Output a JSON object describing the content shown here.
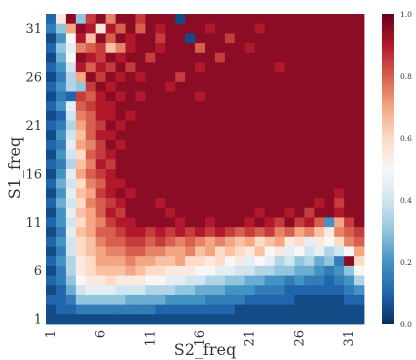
{
  "chart_data": {
    "type": "heatmap",
    "title": "",
    "xlabel": "S2_freq",
    "ylabel": "S1_freq",
    "x_range": [
      1,
      32
    ],
    "y_range": [
      1,
      32
    ],
    "x_ticks": [
      "1",
      "6",
      "11",
      "16",
      "21",
      "26",
      "31"
    ],
    "y_ticks": [
      "1",
      "6",
      "11",
      "16",
      "21",
      "26",
      "31"
    ],
    "value_range": [
      0.0,
      1.0
    ],
    "colormap": "RdBu_r",
    "colorbar_ticks": [
      "0.0",
      "0.2",
      "0.4",
      "0.6",
      "0.8",
      "1.0"
    ],
    "grid": false,
    "description_rows": "rows ordered from S1_freq=32 (top) to S1_freq=1 (bottom); columns ordered S2_freq=1..32",
    "values": [
      [
        0.1,
        0.55,
        0.95,
        0.3,
        0.85,
        0.95,
        0.75,
        0.95,
        0.95,
        0.85,
        0.95,
        0.95,
        0.95,
        0.05,
        0.95,
        0.95,
        0.95,
        0.95,
        0.95,
        0.95,
        0.95,
        0.95,
        0.95,
        0.95,
        0.95,
        0.95,
        0.95,
        0.95,
        0.95,
        0.95,
        0.95,
        0.95
      ],
      [
        0.15,
        0.3,
        0.7,
        0.95,
        0.9,
        0.55,
        0.9,
        0.8,
        0.95,
        0.8,
        0.95,
        0.9,
        0.95,
        0.95,
        0.95,
        0.95,
        0.9,
        0.95,
        0.95,
        0.95,
        0.95,
        0.9,
        0.95,
        0.95,
        0.95,
        0.95,
        0.95,
        0.95,
        0.95,
        0.95,
        0.95,
        0.95
      ],
      [
        0.05,
        0.2,
        0.5,
        0.9,
        0.65,
        0.95,
        0.8,
        0.95,
        0.9,
        0.95,
        0.95,
        0.85,
        0.95,
        0.95,
        0.05,
        0.95,
        0.95,
        0.95,
        0.85,
        0.95,
        0.95,
        0.95,
        0.95,
        0.95,
        0.95,
        0.95,
        0.95,
        0.95,
        0.95,
        0.95,
        0.95,
        0.95
      ],
      [
        0.1,
        0.3,
        0.45,
        0.75,
        0.8,
        0.85,
        0.65,
        0.75,
        0.9,
        0.95,
        0.95,
        0.9,
        0.95,
        0.95,
        0.95,
        0.8,
        0.95,
        0.95,
        0.95,
        0.95,
        0.9,
        0.95,
        0.95,
        0.95,
        0.95,
        0.95,
        0.95,
        0.95,
        0.95,
        0.95,
        0.95,
        0.95
      ],
      [
        0.05,
        0.25,
        0.5,
        0.95,
        0.9,
        0.85,
        0.95,
        0.9,
        0.95,
        0.95,
        0.85,
        0.95,
        0.95,
        0.95,
        0.95,
        0.95,
        0.95,
        0.85,
        0.95,
        0.95,
        0.95,
        0.95,
        0.95,
        0.95,
        0.95,
        0.95,
        0.95,
        0.95,
        0.95,
        0.95,
        0.95,
        0.95
      ],
      [
        0.1,
        0.2,
        0.4,
        0.9,
        0.8,
        0.9,
        0.85,
        0.95,
        0.85,
        0.95,
        0.95,
        0.95,
        0.95,
        0.95,
        0.95,
        0.9,
        0.95,
        0.95,
        0.95,
        0.95,
        0.95,
        0.95,
        0.95,
        0.9,
        0.95,
        0.95,
        0.95,
        0.95,
        0.95,
        0.95,
        0.95,
        0.95
      ],
      [
        0.05,
        0.15,
        0.35,
        0.7,
        0.95,
        0.85,
        0.95,
        0.9,
        0.95,
        0.9,
        0.95,
        0.95,
        0.95,
        0.85,
        0.95,
        0.95,
        0.95,
        0.95,
        0.95,
        0.95,
        0.95,
        0.95,
        0.95,
        0.95,
        0.95,
        0.95,
        0.95,
        0.95,
        0.95,
        0.95,
        0.95,
        0.95
      ],
      [
        0.1,
        0.2,
        0.35,
        0.3,
        0.85,
        0.95,
        0.9,
        0.95,
        0.95,
        0.95,
        0.95,
        0.95,
        0.9,
        0.95,
        0.95,
        0.95,
        0.95,
        0.95,
        0.95,
        0.95,
        0.95,
        0.95,
        0.95,
        0.95,
        0.95,
        0.95,
        0.95,
        0.95,
        0.95,
        0.95,
        0.95,
        0.95
      ],
      [
        0.05,
        0.15,
        0.1,
        0.85,
        0.8,
        0.9,
        0.95,
        0.9,
        0.95,
        0.9,
        0.95,
        0.95,
        0.95,
        0.95,
        0.95,
        0.9,
        0.95,
        0.95,
        0.95,
        0.95,
        0.95,
        0.95,
        0.95,
        0.95,
        0.95,
        0.95,
        0.95,
        0.95,
        0.95,
        0.95,
        0.95,
        0.95
      ],
      [
        0.1,
        0.2,
        0.45,
        0.8,
        0.85,
        0.9,
        0.9,
        0.95,
        0.95,
        0.95,
        0.95,
        0.95,
        0.95,
        0.95,
        0.95,
        0.95,
        0.95,
        0.95,
        0.95,
        0.95,
        0.95,
        0.95,
        0.95,
        0.95,
        0.95,
        0.95,
        0.95,
        0.95,
        0.95,
        0.95,
        0.95,
        0.95
      ],
      [
        0.05,
        0.1,
        0.4,
        0.75,
        0.8,
        0.9,
        0.9,
        0.95,
        0.9,
        0.95,
        0.95,
        0.95,
        0.95,
        0.95,
        0.95,
        0.95,
        0.95,
        0.95,
        0.95,
        0.95,
        0.95,
        0.95,
        0.95,
        0.95,
        0.95,
        0.95,
        0.95,
        0.95,
        0.95,
        0.95,
        0.95,
        0.95
      ],
      [
        0.1,
        0.15,
        0.35,
        0.7,
        0.8,
        0.85,
        0.95,
        0.9,
        0.95,
        0.95,
        0.95,
        0.95,
        0.95,
        0.95,
        0.95,
        0.95,
        0.95,
        0.95,
        0.95,
        0.95,
        0.95,
        0.95,
        0.95,
        0.95,
        0.95,
        0.95,
        0.95,
        0.95,
        0.95,
        0.95,
        0.95,
        0.95
      ],
      [
        0.05,
        0.2,
        0.4,
        0.65,
        0.8,
        0.9,
        0.9,
        0.95,
        0.95,
        0.95,
        0.95,
        0.95,
        0.95,
        0.95,
        0.95,
        0.95,
        0.95,
        0.95,
        0.95,
        0.95,
        0.95,
        0.95,
        0.95,
        0.95,
        0.95,
        0.95,
        0.95,
        0.95,
        0.95,
        0.95,
        0.95,
        0.95
      ],
      [
        0.1,
        0.15,
        0.45,
        0.7,
        0.75,
        0.85,
        0.95,
        0.9,
        0.95,
        0.95,
        0.95,
        0.95,
        0.95,
        0.95,
        0.95,
        0.95,
        0.95,
        0.95,
        0.95,
        0.95,
        0.95,
        0.95,
        0.95,
        0.95,
        0.95,
        0.95,
        0.95,
        0.95,
        0.95,
        0.95,
        0.95,
        0.95
      ],
      [
        0.05,
        0.2,
        0.4,
        0.6,
        0.8,
        0.85,
        0.9,
        0.95,
        0.95,
        0.95,
        0.95,
        0.95,
        0.95,
        0.95,
        0.95,
        0.95,
        0.95,
        0.95,
        0.95,
        0.95,
        0.95,
        0.95,
        0.95,
        0.95,
        0.95,
        0.95,
        0.95,
        0.95,
        0.95,
        0.95,
        0.95,
        0.95
      ],
      [
        0.1,
        0.15,
        0.35,
        0.65,
        0.75,
        0.9,
        0.85,
        0.95,
        0.95,
        0.95,
        0.95,
        0.95,
        0.95,
        0.95,
        0.95,
        0.95,
        0.95,
        0.95,
        0.95,
        0.95,
        0.95,
        0.95,
        0.95,
        0.95,
        0.95,
        0.95,
        0.95,
        0.95,
        0.95,
        0.95,
        0.95,
        0.95
      ],
      [
        0.05,
        0.2,
        0.45,
        0.7,
        0.8,
        0.85,
        0.9,
        0.95,
        0.95,
        0.95,
        0.95,
        0.95,
        0.95,
        0.95,
        0.95,
        0.95,
        0.95,
        0.95,
        0.95,
        0.95,
        0.95,
        0.95,
        0.95,
        0.95,
        0.95,
        0.95,
        0.95,
        0.95,
        0.95,
        0.95,
        0.95,
        0.95
      ],
      [
        0.1,
        0.25,
        0.4,
        0.6,
        0.75,
        0.8,
        0.9,
        0.9,
        0.95,
        0.95,
        0.95,
        0.95,
        0.95,
        0.95,
        0.95,
        0.95,
        0.95,
        0.95,
        0.95,
        0.95,
        0.95,
        0.95,
        0.95,
        0.95,
        0.95,
        0.95,
        0.95,
        0.95,
        0.95,
        0.95,
        0.95,
        0.95
      ],
      [
        0.05,
        0.2,
        0.45,
        0.65,
        0.7,
        0.85,
        0.9,
        0.95,
        0.9,
        0.95,
        0.95,
        0.95,
        0.95,
        0.95,
        0.95,
        0.95,
        0.95,
        0.95,
        0.95,
        0.95,
        0.95,
        0.95,
        0.95,
        0.95,
        0.95,
        0.95,
        0.95,
        0.95,
        0.95,
        0.9,
        0.95,
        0.95
      ],
      [
        0.1,
        0.25,
        0.4,
        0.6,
        0.75,
        0.8,
        0.85,
        0.9,
        0.95,
        0.95,
        0.95,
        0.9,
        0.95,
        0.95,
        0.95,
        0.95,
        0.95,
        0.95,
        0.95,
        0.95,
        0.95,
        0.95,
        0.95,
        0.95,
        0.95,
        0.95,
        0.95,
        0.9,
        0.95,
        0.85,
        0.95,
        0.95
      ],
      [
        0.05,
        0.2,
        0.45,
        0.65,
        0.7,
        0.8,
        0.9,
        0.85,
        0.95,
        0.95,
        0.95,
        0.95,
        0.9,
        0.95,
        0.95,
        0.95,
        0.95,
        0.95,
        0.95,
        0.95,
        0.95,
        0.9,
        0.95,
        0.95,
        0.9,
        0.95,
        0.85,
        0.95,
        0.95,
        0.9,
        0.95,
        0.95
      ],
      [
        0.1,
        0.2,
        0.4,
        0.6,
        0.7,
        0.75,
        0.85,
        0.9,
        0.9,
        0.95,
        0.95,
        0.95,
        0.95,
        0.9,
        0.95,
        0.95,
        0.9,
        0.95,
        0.95,
        0.95,
        0.9,
        0.95,
        0.9,
        0.85,
        0.95,
        0.85,
        0.9,
        0.8,
        0.2,
        0.7,
        0.85,
        0.95
      ],
      [
        0.05,
        0.15,
        0.45,
        0.65,
        0.7,
        0.8,
        0.8,
        0.85,
        0.9,
        0.9,
        0.85,
        0.9,
        0.85,
        0.9,
        0.85,
        0.9,
        0.85,
        0.9,
        0.85,
        0.8,
        0.85,
        0.8,
        0.85,
        0.75,
        0.8,
        0.7,
        0.75,
        0.65,
        0.55,
        0.75,
        0.8,
        0.85
      ],
      [
        0.1,
        0.2,
        0.4,
        0.6,
        0.65,
        0.75,
        0.8,
        0.8,
        0.85,
        0.85,
        0.8,
        0.85,
        0.8,
        0.75,
        0.8,
        0.75,
        0.7,
        0.75,
        0.7,
        0.65,
        0.7,
        0.6,
        0.65,
        0.7,
        0.55,
        0.6,
        0.45,
        0.55,
        0.5,
        0.6,
        0.75,
        0.8
      ],
      [
        0.05,
        0.15,
        0.4,
        0.6,
        0.65,
        0.7,
        0.75,
        0.75,
        0.8,
        0.8,
        0.75,
        0.75,
        0.7,
        0.7,
        0.75,
        0.65,
        0.7,
        0.6,
        0.65,
        0.6,
        0.55,
        0.65,
        0.5,
        0.55,
        0.45,
        0.5,
        0.4,
        0.45,
        0.35,
        0.4,
        0.5,
        0.7
      ],
      [
        0.1,
        0.2,
        0.35,
        0.55,
        0.6,
        0.7,
        0.7,
        0.7,
        0.75,
        0.7,
        0.7,
        0.65,
        0.65,
        0.7,
        0.6,
        0.6,
        0.55,
        0.6,
        0.5,
        0.55,
        0.45,
        0.5,
        0.45,
        0.35,
        0.4,
        0.3,
        0.35,
        0.25,
        0.3,
        0.15,
        0.95,
        0.6
      ],
      [
        0.05,
        0.15,
        0.35,
        0.55,
        0.6,
        0.65,
        0.65,
        0.65,
        0.7,
        0.65,
        0.6,
        0.6,
        0.55,
        0.55,
        0.55,
        0.5,
        0.5,
        0.45,
        0.45,
        0.4,
        0.4,
        0.35,
        0.35,
        0.3,
        0.3,
        0.25,
        0.25,
        0.2,
        0.15,
        0.2,
        0.3,
        0.5
      ],
      [
        0.1,
        0.15,
        0.3,
        0.5,
        0.55,
        0.55,
        0.6,
        0.55,
        0.55,
        0.55,
        0.5,
        0.5,
        0.45,
        0.45,
        0.4,
        0.4,
        0.35,
        0.35,
        0.3,
        0.3,
        0.25,
        0.25,
        0.2,
        0.2,
        0.15,
        0.2,
        0.15,
        0.15,
        0.1,
        0.15,
        0.2,
        0.35
      ],
      [
        0.05,
        0.1,
        0.25,
        0.4,
        0.45,
        0.45,
        0.45,
        0.4,
        0.4,
        0.4,
        0.35,
        0.35,
        0.35,
        0.3,
        0.3,
        0.25,
        0.25,
        0.25,
        0.2,
        0.2,
        0.2,
        0.15,
        0.15,
        0.15,
        0.1,
        0.1,
        0.1,
        0.1,
        0.1,
        0.1,
        0.15,
        0.2
      ],
      [
        0.1,
        0.1,
        0.15,
        0.3,
        0.3,
        0.3,
        0.3,
        0.3,
        0.25,
        0.25,
        0.25,
        0.25,
        0.2,
        0.2,
        0.2,
        0.2,
        0.15,
        0.15,
        0.15,
        0.15,
        0.1,
        0.1,
        0.1,
        0.1,
        0.1,
        0.05,
        0.05,
        0.05,
        0.05,
        0.05,
        0.1,
        0.1
      ],
      [
        0.05,
        0.1,
        0.1,
        0.15,
        0.15,
        0.15,
        0.15,
        0.15,
        0.15,
        0.15,
        0.15,
        0.1,
        0.1,
        0.1,
        0.1,
        0.1,
        0.1,
        0.1,
        0.1,
        0.05,
        0.05,
        0.05,
        0.05,
        0.05,
        0.05,
        0.05,
        0.05,
        0.05,
        0.05,
        0.05,
        0.05,
        0.05
      ],
      [
        0.05,
        0.05,
        0.05,
        0.05,
        0.05,
        0.05,
        0.05,
        0.05,
        0.05,
        0.05,
        0.05,
        0.05,
        0.05,
        0.05,
        0.05,
        0.05,
        0.05,
        0.05,
        0.05,
        0.05,
        0.05,
        0.05,
        0.05,
        0.05,
        0.05,
        0.05,
        0.05,
        0.05,
        0.05,
        0.05,
        0.05,
        0.05
      ]
    ]
  }
}
